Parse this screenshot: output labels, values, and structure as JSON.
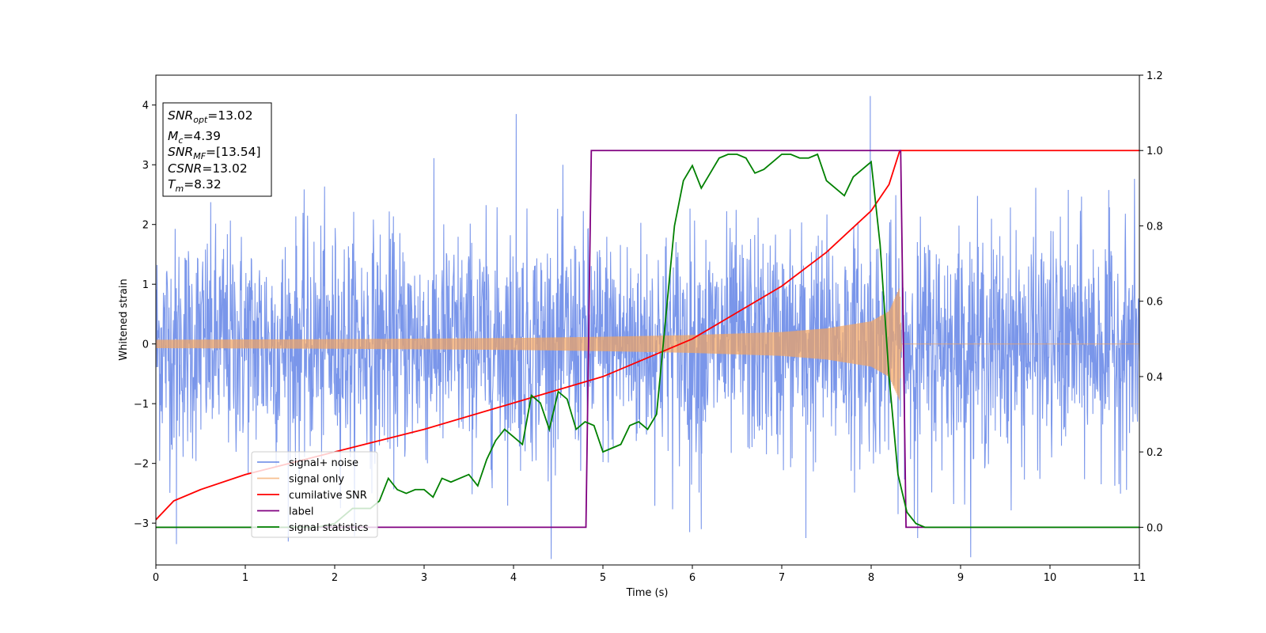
{
  "chart_data": {
    "type": "line",
    "title": "",
    "xlabel": "Time (s)",
    "ylabel": "Whitened strain",
    "ylabel_right": "",
    "xlim": [
      0,
      11
    ],
    "ylim": [
      -3.7,
      4.5
    ],
    "ylim_right": [
      -0.1,
      1.2
    ],
    "x_ticks": [
      0,
      1,
      2,
      3,
      4,
      5,
      6,
      7,
      8,
      9,
      10,
      11
    ],
    "y_ticks": [
      -3,
      -2,
      -1,
      0,
      1,
      2,
      3,
      4
    ],
    "y_ticks_right": [
      "0.0",
      "0.2",
      "0.4",
      "0.6",
      "0.8",
      "1.0",
      "1.2"
    ],
    "grid": false,
    "legend_position": "lower-left",
    "annotation": {
      "snr_opt": {
        "base": "SNR",
        "sub": "opt",
        "value": "=13.02"
      },
      "mc": {
        "base": "M",
        "sub": "c",
        "value": "=4.39"
      },
      "snr_mf": {
        "base": "SNR",
        "sub": "MF",
        "value": "=[13.54]"
      },
      "csnr": {
        "base": "CSNR",
        "value": "=13.02"
      },
      "tm": {
        "base": "T",
        "sub": "m",
        "value": "=8.32"
      }
    },
    "series": [
      {
        "name": "signal+ noise",
        "axis": "left",
        "color": "#4169e1",
        "description": "whitened noise + signal, approximately Gaussian with std ~1, peak values",
        "noise_std": 0.95,
        "spikes": [
          [
            0.23,
            -3.35
          ],
          [
            4.03,
            3.85
          ],
          [
            5.97,
            -3.15
          ],
          [
            6.1,
            -3.1
          ],
          [
            7.27,
            -3.25
          ],
          [
            7.99,
            4.15
          ],
          [
            8.52,
            -3.25
          ]
        ]
      },
      {
        "name": "signal only",
        "axis": "left",
        "color": "#f4a460",
        "envelope": [
          [
            0,
            0.07
          ],
          [
            1,
            0.075
          ],
          [
            2,
            0.08
          ],
          [
            3,
            0.09
          ],
          [
            4,
            0.1
          ],
          [
            5,
            0.12
          ],
          [
            6,
            0.15
          ],
          [
            7,
            0.2
          ],
          [
            7.5,
            0.26
          ],
          [
            8,
            0.38
          ],
          [
            8.2,
            0.55
          ],
          [
            8.32,
            0.95
          ],
          [
            8.34,
            0.0
          ],
          [
            11,
            0.0
          ]
        ]
      },
      {
        "name": "cumilative SNR",
        "axis": "right",
        "color": "#ff0000",
        "points": [
          [
            0,
            0.02
          ],
          [
            0.2,
            0.07
          ],
          [
            0.5,
            0.1
          ],
          [
            1,
            0.14
          ],
          [
            2,
            0.2
          ],
          [
            3,
            0.26
          ],
          [
            4,
            0.33
          ],
          [
            5,
            0.4
          ],
          [
            6,
            0.5
          ],
          [
            6.5,
            0.57
          ],
          [
            7,
            0.64
          ],
          [
            7.5,
            0.73
          ],
          [
            8,
            0.84
          ],
          [
            8.2,
            0.91
          ],
          [
            8.32,
            1.0
          ],
          [
            11,
            1.0
          ]
        ]
      },
      {
        "name": "label",
        "axis": "right",
        "color": "#800080",
        "points": [
          [
            0,
            0.0
          ],
          [
            4.81,
            0.0
          ],
          [
            4.87,
            1.0
          ],
          [
            8.33,
            1.0
          ],
          [
            8.39,
            0.0
          ],
          [
            11,
            0.0
          ]
        ]
      },
      {
        "name": "signal statistics",
        "axis": "right",
        "color": "#008000",
        "points": [
          [
            0,
            0.0
          ],
          [
            1.0,
            0.0
          ],
          [
            1.8,
            0.0
          ],
          [
            2.0,
            0.01
          ],
          [
            2.1,
            0.03
          ],
          [
            2.2,
            0.05
          ],
          [
            2.3,
            0.05
          ],
          [
            2.4,
            0.05
          ],
          [
            2.5,
            0.07
          ],
          [
            2.6,
            0.13
          ],
          [
            2.7,
            0.1
          ],
          [
            2.8,
            0.09
          ],
          [
            2.9,
            0.1
          ],
          [
            3.0,
            0.1
          ],
          [
            3.1,
            0.08
          ],
          [
            3.2,
            0.13
          ],
          [
            3.3,
            0.12
          ],
          [
            3.4,
            0.13
          ],
          [
            3.5,
            0.14
          ],
          [
            3.6,
            0.11
          ],
          [
            3.7,
            0.18
          ],
          [
            3.8,
            0.23
          ],
          [
            3.9,
            0.26
          ],
          [
            4.0,
            0.24
          ],
          [
            4.1,
            0.22
          ],
          [
            4.2,
            0.35
          ],
          [
            4.3,
            0.33
          ],
          [
            4.4,
            0.26
          ],
          [
            4.5,
            0.36
          ],
          [
            4.6,
            0.34
          ],
          [
            4.7,
            0.26
          ],
          [
            4.8,
            0.28
          ],
          [
            4.9,
            0.27
          ],
          [
            5.0,
            0.2
          ],
          [
            5.1,
            0.21
          ],
          [
            5.2,
            0.22
          ],
          [
            5.3,
            0.27
          ],
          [
            5.4,
            0.28
          ],
          [
            5.5,
            0.26
          ],
          [
            5.6,
            0.3
          ],
          [
            5.7,
            0.55
          ],
          [
            5.8,
            0.8
          ],
          [
            5.9,
            0.92
          ],
          [
            6.0,
            0.96
          ],
          [
            6.1,
            0.9
          ],
          [
            6.2,
            0.94
          ],
          [
            6.3,
            0.98
          ],
          [
            6.4,
            0.99
          ],
          [
            6.5,
            0.99
          ],
          [
            6.6,
            0.98
          ],
          [
            6.7,
            0.94
          ],
          [
            6.8,
            0.95
          ],
          [
            6.9,
            0.97
          ],
          [
            7.0,
            0.99
          ],
          [
            7.1,
            0.99
          ],
          [
            7.2,
            0.98
          ],
          [
            7.3,
            0.98
          ],
          [
            7.4,
            0.99
          ],
          [
            7.5,
            0.92
          ],
          [
            7.6,
            0.9
          ],
          [
            7.7,
            0.88
          ],
          [
            7.8,
            0.93
          ],
          [
            7.9,
            0.95
          ],
          [
            8.0,
            0.97
          ],
          [
            8.1,
            0.75
          ],
          [
            8.2,
            0.4
          ],
          [
            8.3,
            0.14
          ],
          [
            8.4,
            0.04
          ],
          [
            8.5,
            0.01
          ],
          [
            8.6,
            0.0
          ],
          [
            11,
            0.0
          ]
        ]
      }
    ]
  }
}
